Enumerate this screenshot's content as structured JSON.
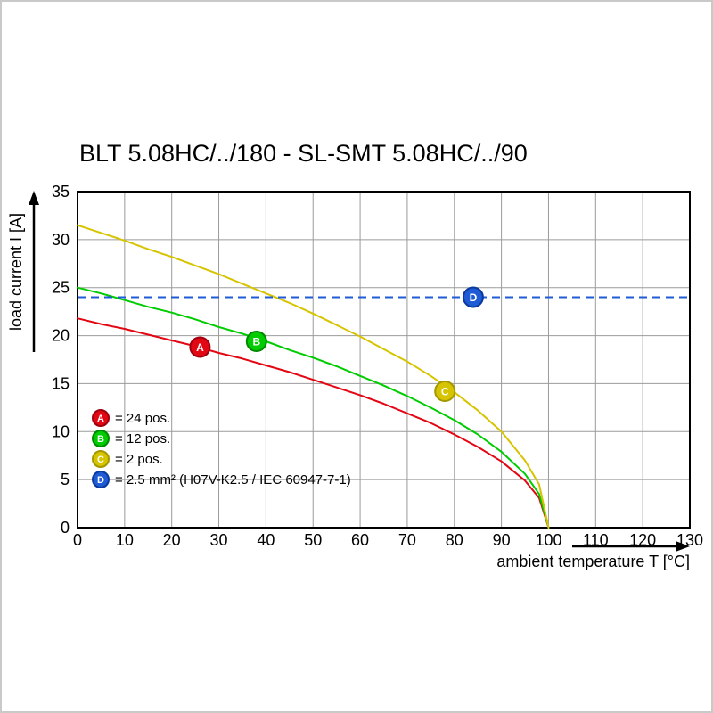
{
  "chart_data": {
    "type": "line",
    "title": "BLT 5.08HC/../180 - SL-SMT 5.08HC/../90",
    "xlabel": "ambient temperature T [°C]",
    "ylabel": "load current I [A]",
    "xlim": [
      0,
      130
    ],
    "ylim": [
      0,
      35
    ],
    "xticks": [
      0,
      10,
      20,
      30,
      40,
      50,
      60,
      70,
      80,
      90,
      100,
      110,
      120,
      130
    ],
    "yticks": [
      0,
      5,
      10,
      15,
      20,
      25,
      30,
      35
    ],
    "grid": true,
    "grid_color": "#9b9b9b",
    "frame_color": "#000000",
    "legend_position": "inside-bottom-left",
    "series": [
      {
        "id": "A",
        "name": "24 pos.",
        "color": "#e30613",
        "marker_stroke": "#9e0010",
        "style": "solid",
        "points": [
          [
            0,
            21.8
          ],
          [
            5,
            21.2
          ],
          [
            10,
            20.7
          ],
          [
            15,
            20.1
          ],
          [
            20,
            19.5
          ],
          [
            25,
            18.9
          ],
          [
            30,
            18.2
          ],
          [
            35,
            17.6
          ],
          [
            40,
            16.9
          ],
          [
            45,
            16.2
          ],
          [
            50,
            15.4
          ],
          [
            55,
            14.6
          ],
          [
            60,
            13.8
          ],
          [
            65,
            12.9
          ],
          [
            70,
            11.9
          ],
          [
            75,
            10.9
          ],
          [
            80,
            9.7
          ],
          [
            85,
            8.4
          ],
          [
            90,
            6.9
          ],
          [
            95,
            4.9
          ],
          [
            98,
            3.1
          ],
          [
            100,
            0
          ]
        ],
        "marker": {
          "x": 26,
          "y": 18.8
        }
      },
      {
        "id": "B",
        "name": "12 pos.",
        "color": "#00cc00",
        "marker_stroke": "#008a00",
        "style": "solid",
        "points": [
          [
            0,
            25
          ],
          [
            5,
            24.4
          ],
          [
            10,
            23.7
          ],
          [
            15,
            23.0
          ],
          [
            20,
            22.4
          ],
          [
            25,
            21.7
          ],
          [
            30,
            20.9
          ],
          [
            35,
            20.2
          ],
          [
            40,
            19.4
          ],
          [
            45,
            18.5
          ],
          [
            50,
            17.7
          ],
          [
            55,
            16.8
          ],
          [
            60,
            15.8
          ],
          [
            65,
            14.8
          ],
          [
            70,
            13.7
          ],
          [
            75,
            12.5
          ],
          [
            80,
            11.2
          ],
          [
            85,
            9.7
          ],
          [
            90,
            7.9
          ],
          [
            95,
            5.6
          ],
          [
            98,
            3.5
          ],
          [
            100,
            0
          ]
        ],
        "marker": {
          "x": 38,
          "y": 19.4
        }
      },
      {
        "id": "C",
        "name": "2 pos.",
        "color": "#d6c400",
        "marker_stroke": "#a59700",
        "style": "solid",
        "points": [
          [
            0,
            31.5
          ],
          [
            5,
            30.7
          ],
          [
            10,
            29.9
          ],
          [
            15,
            29.0
          ],
          [
            20,
            28.2
          ],
          [
            25,
            27.3
          ],
          [
            30,
            26.4
          ],
          [
            35,
            25.4
          ],
          [
            40,
            24.4
          ],
          [
            45,
            23.4
          ],
          [
            50,
            22.3
          ],
          [
            55,
            21.1
          ],
          [
            60,
            19.9
          ],
          [
            65,
            18.6
          ],
          [
            70,
            17.3
          ],
          [
            75,
            15.8
          ],
          [
            80,
            14.1
          ],
          [
            85,
            12.2
          ],
          [
            90,
            10.0
          ],
          [
            95,
            7.0
          ],
          [
            98,
            4.5
          ],
          [
            100,
            0
          ]
        ],
        "marker": {
          "x": 78,
          "y": 14.2
        }
      },
      {
        "id": "D",
        "name": "2.5 mm² (H07V-K2.5 / IEC 60947-7-1)",
        "color": "#1f5bd5",
        "marker_stroke": "#0b3a9e",
        "style": "dashed",
        "y_const": 24,
        "marker": {
          "x": 84,
          "y": 24
        }
      }
    ],
    "legend": {
      "items": [
        {
          "id": "A",
          "fill": "#e30613",
          "stroke": "#9e0010",
          "label": "= 24 pos."
        },
        {
          "id": "B",
          "fill": "#00cc00",
          "stroke": "#008a00",
          "label": "= 12 pos."
        },
        {
          "id": "C",
          "fill": "#d6c400",
          "stroke": "#a59700",
          "label": "= 2 pos."
        },
        {
          "id": "D",
          "fill": "#1f5bd5",
          "stroke": "#0b3a9e",
          "label": "= 2.5 mm² (H07V-K2.5 / IEC 60947-7-1)"
        }
      ]
    }
  }
}
